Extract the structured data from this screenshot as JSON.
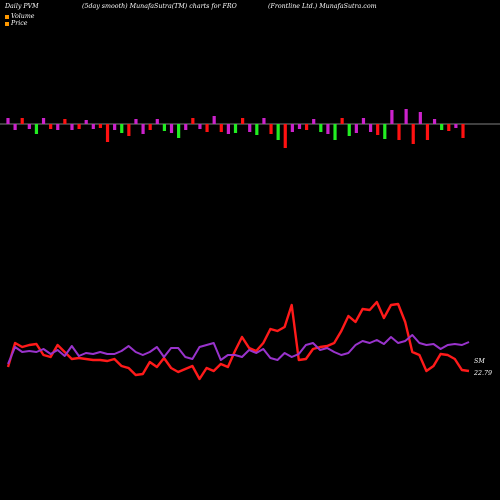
{
  "header": {
    "left": "Daily PVM",
    "middle": "(5day smooth) MunafaSutra(TM) charts for FRO",
    "right": "(Frontline  Ltd.) MunafaSutra.com"
  },
  "legend": {
    "volume": "Volume",
    "price": "Price",
    "volume_color": "#ff9900",
    "price_color": "#ff9900"
  },
  "colors": {
    "background": "#000000",
    "baseline": "#aaaaaa",
    "bar_magenta": "#cc22cc",
    "bar_red": "#ff1111",
    "bar_green": "#22ee22",
    "price_line": "#ff1a1a",
    "sm_line": "#9933cc"
  },
  "chart_data": [
    {
      "type": "bar",
      "title": "",
      "x": [
        1,
        2,
        3,
        4,
        5,
        6,
        7,
        8,
        9,
        10,
        11,
        12,
        13,
        14,
        15,
        16,
        17,
        18,
        19,
        20,
        21,
        22,
        23,
        24,
        25,
        26,
        27,
        28,
        29,
        30,
        31,
        32,
        33,
        34,
        35,
        36,
        37,
        38,
        39,
        40,
        41,
        42,
        43,
        44,
        45,
        46,
        47,
        48,
        49,
        50,
        51,
        52,
        53,
        54,
        55,
        56,
        57,
        58,
        59,
        60,
        61,
        62,
        63,
        64,
        65
      ],
      "series": [
        {
          "values": [
            6,
            -6,
            6,
            -5,
            -10,
            6,
            -5,
            -6,
            5,
            -6,
            -5,
            4,
            -5,
            -4,
            -18,
            -6,
            -9,
            -12,
            5,
            -10,
            -6,
            5,
            -7,
            -9,
            -14,
            -6,
            6,
            -5,
            -8,
            8,
            -8,
            -10,
            -9,
            6,
            -8,
            -11,
            6,
            -10,
            -16,
            -24,
            -8,
            -5,
            -6,
            5,
            -8,
            -10,
            -16,
            6,
            -12,
            -9,
            6,
            -8,
            -11,
            -15,
            14,
            -16,
            15,
            -20,
            12,
            -16,
            5,
            -6,
            -7,
            -4,
            -14
          ],
          "colors": [
            "magenta",
            "magenta",
            "red",
            "magenta",
            "green",
            "magenta",
            "red",
            "magenta",
            "red",
            "magenta",
            "red",
            "magenta",
            "magenta",
            "red",
            "red",
            "magenta",
            "green",
            "red",
            "magenta",
            "magenta",
            "red",
            "magenta",
            "green",
            "magenta",
            "green",
            "magenta",
            "red",
            "magenta",
            "red",
            "magenta",
            "red",
            "magenta",
            "green",
            "red",
            "magenta",
            "green",
            "magenta",
            "red",
            "green",
            "red",
            "magenta",
            "magenta",
            "red",
            "magenta",
            "green",
            "magenta",
            "green",
            "red",
            "green",
            "magenta",
            "magenta",
            "magenta",
            "red",
            "green",
            "magenta",
            "red",
            "magenta",
            "red",
            "magenta",
            "red",
            "magenta",
            "green",
            "red",
            "magenta",
            "red"
          ]
        }
      ]
    },
    {
      "type": "line",
      "title": "",
      "x": [
        1,
        2,
        3,
        4,
        5,
        6,
        7,
        8,
        9,
        10,
        11,
        12,
        13,
        14,
        15,
        16,
        17,
        18,
        19,
        20,
        21,
        22,
        23,
        24,
        25,
        26,
        27,
        28,
        29,
        30,
        31,
        32,
        33,
        34,
        35,
        36,
        37,
        38,
        39,
        40,
        41,
        42,
        43,
        44,
        45,
        46,
        47,
        48,
        49,
        50,
        51,
        52,
        53,
        54,
        55,
        56,
        57,
        58,
        59,
        60,
        61,
        62,
        63,
        64,
        65,
        66
      ],
      "series": [
        {
          "name": "",
          "values": [
            5,
            29,
            25,
            27,
            28,
            17,
            15,
            27,
            20,
            13,
            14,
            13,
            12,
            12,
            11,
            13,
            6,
            4,
            -3,
            -2,
            10,
            5,
            14,
            4,
            0,
            3,
            6,
            -7,
            4,
            1,
            8,
            5,
            21,
            35,
            24,
            21,
            29,
            43,
            41,
            45,
            67,
            12,
            13,
            23,
            25,
            26,
            29,
            41,
            56,
            50,
            63,
            62,
            70,
            54,
            67,
            68,
            50,
            20,
            17,
            1,
            6,
            18,
            17,
            13,
            2,
            1
          ]
        },
        {
          "name": "SM",
          "values": [
            8,
            25,
            20,
            21,
            20,
            23,
            18,
            22,
            16,
            26,
            16,
            19,
            18,
            20,
            18,
            18,
            21,
            26,
            20,
            17,
            20,
            25,
            15,
            24,
            24,
            15,
            13,
            25,
            27,
            29,
            12,
            17,
            17,
            15,
            22,
            19,
            23,
            14,
            12,
            19,
            15,
            18,
            27,
            29,
            22,
            24,
            20,
            17,
            19,
            27,
            31,
            29,
            32,
            28,
            35,
            29,
            31,
            37,
            29,
            27,
            28,
            23,
            27,
            28,
            27,
            30
          ]
        }
      ],
      "end_labels": {
        "series": "SM",
        "last_price": "22.79"
      }
    }
  ]
}
